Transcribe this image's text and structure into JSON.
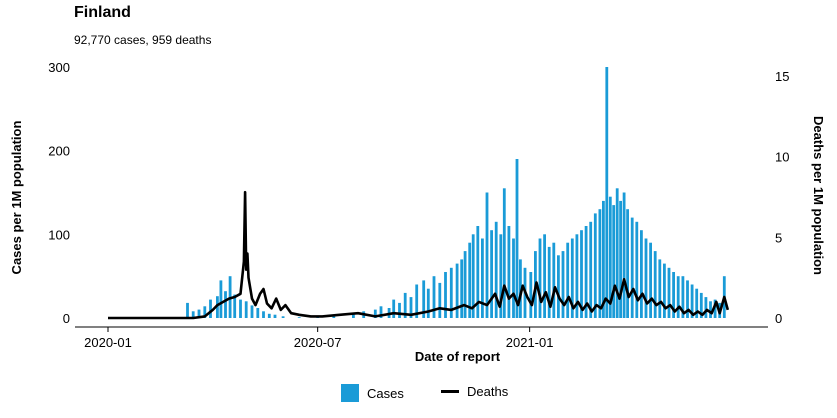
{
  "header": {
    "title": "Finland",
    "subtitle": "92,770 cases, 959 deaths"
  },
  "legend": {
    "cases_label": "Cases",
    "deaths_label": "Deaths"
  },
  "colors": {
    "cases": "#1a9bd7",
    "deaths": "#000000"
  },
  "chart_data": {
    "type": "bar",
    "combo": "bar (cases, left axis) + line (deaths, right axis)",
    "xlabel": "Date of report",
    "ylabel_left": "Cases per 1M population",
    "ylabel_right": "Deaths per 1M population",
    "x_ticks": [
      "2020-01",
      "2020-07",
      "2021-01"
    ],
    "y_left_ticks": [
      0,
      100,
      200,
      300
    ],
    "y_left_lim": [
      0,
      300
    ],
    "y_right_ticks": [
      0,
      5,
      10,
      15
    ],
    "y_right_lim": [
      0,
      15
    ],
    "x_range": [
      "2020-01-01",
      "2021-06-30"
    ],
    "grid": false,
    "legend_position": "bottom",
    "series": [
      {
        "name": "Cases",
        "axis": "left",
        "kind": "bar",
        "points": [
          [
            "2020-03-10",
            18
          ],
          [
            "2020-03-15",
            8
          ],
          [
            "2020-03-20",
            10
          ],
          [
            "2020-03-25",
            14
          ],
          [
            "2020-03-30",
            22
          ],
          [
            "2020-04-05",
            26
          ],
          [
            "2020-04-08",
            45
          ],
          [
            "2020-04-12",
            32
          ],
          [
            "2020-04-16",
            50
          ],
          [
            "2020-04-20",
            28
          ],
          [
            "2020-04-25",
            22
          ],
          [
            "2020-04-30",
            20
          ],
          [
            "2020-05-05",
            15
          ],
          [
            "2020-05-10",
            12
          ],
          [
            "2020-05-15",
            8
          ],
          [
            "2020-05-20",
            5
          ],
          [
            "2020-05-25",
            4
          ],
          [
            "2020-06-01",
            2
          ],
          [
            "2020-06-15",
            1
          ],
          [
            "2020-07-01",
            2
          ],
          [
            "2020-07-15",
            3
          ],
          [
            "2020-08-01",
            5
          ],
          [
            "2020-08-10",
            8
          ],
          [
            "2020-08-20",
            10
          ],
          [
            "2020-08-25",
            14
          ],
          [
            "2020-09-01",
            12
          ],
          [
            "2020-09-05",
            22
          ],
          [
            "2020-09-10",
            18
          ],
          [
            "2020-09-15",
            30
          ],
          [
            "2020-09-20",
            25
          ],
          [
            "2020-09-25",
            40
          ],
          [
            "2020-10-01",
            45
          ],
          [
            "2020-10-05",
            35
          ],
          [
            "2020-10-10",
            50
          ],
          [
            "2020-10-15",
            42
          ],
          [
            "2020-10-20",
            55
          ],
          [
            "2020-10-25",
            60
          ],
          [
            "2020-10-30",
            65
          ],
          [
            "2020-11-03",
            70
          ],
          [
            "2020-11-06",
            80
          ],
          [
            "2020-11-10",
            90
          ],
          [
            "2020-11-13",
            100
          ],
          [
            "2020-11-17",
            110
          ],
          [
            "2020-11-21",
            95
          ],
          [
            "2020-11-25",
            150
          ],
          [
            "2020-11-29",
            105
          ],
          [
            "2020-12-03",
            115
          ],
          [
            "2020-12-07",
            100
          ],
          [
            "2020-12-10",
            155
          ],
          [
            "2020-12-14",
            110
          ],
          [
            "2020-12-18",
            95
          ],
          [
            "2020-12-21",
            190
          ],
          [
            "2020-12-24",
            70
          ],
          [
            "2020-12-28",
            60
          ],
          [
            "2021-01-02",
            55
          ],
          [
            "2021-01-06",
            80
          ],
          [
            "2021-01-10",
            95
          ],
          [
            "2021-01-14",
            100
          ],
          [
            "2021-01-18",
            85
          ],
          [
            "2021-01-22",
            90
          ],
          [
            "2021-01-26",
            75
          ],
          [
            "2021-01-30",
            80
          ],
          [
            "2021-02-03",
            90
          ],
          [
            "2021-02-07",
            95
          ],
          [
            "2021-02-11",
            100
          ],
          [
            "2021-02-15",
            105
          ],
          [
            "2021-02-19",
            110
          ],
          [
            "2021-02-23",
            115
          ],
          [
            "2021-02-27",
            125
          ],
          [
            "2021-03-03",
            130
          ],
          [
            "2021-03-06",
            140
          ],
          [
            "2021-03-09",
            300
          ],
          [
            "2021-03-12",
            145
          ],
          [
            "2021-03-15",
            135
          ],
          [
            "2021-03-18",
            155
          ],
          [
            "2021-03-21",
            140
          ],
          [
            "2021-03-24",
            150
          ],
          [
            "2021-03-27",
            130
          ],
          [
            "2021-03-31",
            120
          ],
          [
            "2021-04-04",
            115
          ],
          [
            "2021-04-08",
            105
          ],
          [
            "2021-04-12",
            95
          ],
          [
            "2021-04-16",
            90
          ],
          [
            "2021-04-20",
            80
          ],
          [
            "2021-04-24",
            70
          ],
          [
            "2021-04-28",
            65
          ],
          [
            "2021-05-02",
            60
          ],
          [
            "2021-05-06",
            55
          ],
          [
            "2021-05-10",
            50
          ],
          [
            "2021-05-14",
            50
          ],
          [
            "2021-05-18",
            45
          ],
          [
            "2021-05-22",
            40
          ],
          [
            "2021-05-26",
            35
          ],
          [
            "2021-05-30",
            30
          ],
          [
            "2021-06-03",
            25
          ],
          [
            "2021-06-07",
            20
          ],
          [
            "2021-06-11",
            22
          ],
          [
            "2021-06-15",
            18
          ],
          [
            "2021-06-19",
            50
          ]
        ]
      },
      {
        "name": "Deaths",
        "axis": "right",
        "kind": "line",
        "points": [
          [
            "2020-01-01",
            0
          ],
          [
            "2020-03-15",
            0
          ],
          [
            "2020-03-25",
            0.1
          ],
          [
            "2020-04-01",
            0.5
          ],
          [
            "2020-04-05",
            0.8
          ],
          [
            "2020-04-10",
            1.0
          ],
          [
            "2020-04-15",
            1.2
          ],
          [
            "2020-04-20",
            1.3
          ],
          [
            "2020-04-25",
            1.5
          ],
          [
            "2020-04-28",
            3.5
          ],
          [
            "2020-04-29",
            7.8
          ],
          [
            "2020-04-30",
            3.0
          ],
          [
            "2020-05-01",
            4.0
          ],
          [
            "2020-05-02",
            2.5
          ],
          [
            "2020-05-05",
            1.2
          ],
          [
            "2020-05-08",
            0.8
          ],
          [
            "2020-05-12",
            1.5
          ],
          [
            "2020-05-15",
            1.8
          ],
          [
            "2020-05-18",
            0.9
          ],
          [
            "2020-05-22",
            0.6
          ],
          [
            "2020-05-26",
            1.2
          ],
          [
            "2020-05-30",
            0.5
          ],
          [
            "2020-06-03",
            0.8
          ],
          [
            "2020-06-08",
            0.3
          ],
          [
            "2020-06-15",
            0.2
          ],
          [
            "2020-06-25",
            0.1
          ],
          [
            "2020-07-05",
            0.1
          ],
          [
            "2020-07-20",
            0.2
          ],
          [
            "2020-08-05",
            0.3
          ],
          [
            "2020-08-20",
            0.1
          ],
          [
            "2020-09-05",
            0.3
          ],
          [
            "2020-09-20",
            0.2
          ],
          [
            "2020-10-05",
            0.4
          ],
          [
            "2020-10-15",
            0.6
          ],
          [
            "2020-10-25",
            0.5
          ],
          [
            "2020-11-05",
            0.8
          ],
          [
            "2020-11-12",
            0.6
          ],
          [
            "2020-11-18",
            1.0
          ],
          [
            "2020-11-25",
            0.8
          ],
          [
            "2020-12-02",
            1.5
          ],
          [
            "2020-12-06",
            0.7
          ],
          [
            "2020-12-10",
            2.0
          ],
          [
            "2020-12-14",
            1.2
          ],
          [
            "2020-12-18",
            1.5
          ],
          [
            "2020-12-22",
            0.8
          ],
          [
            "2020-12-26",
            2.0
          ],
          [
            "2020-12-30",
            1.3
          ],
          [
            "2021-01-03",
            0.8
          ],
          [
            "2021-01-07",
            2.2
          ],
          [
            "2021-01-11",
            1.0
          ],
          [
            "2021-01-15",
            1.6
          ],
          [
            "2021-01-19",
            0.7
          ],
          [
            "2021-01-23",
            1.9
          ],
          [
            "2021-01-27",
            1.2
          ],
          [
            "2021-01-31",
            0.8
          ],
          [
            "2021-02-04",
            1.3
          ],
          [
            "2021-02-08",
            0.6
          ],
          [
            "2021-02-12",
            1.0
          ],
          [
            "2021-02-16",
            0.5
          ],
          [
            "2021-02-20",
            0.9
          ],
          [
            "2021-02-24",
            0.4
          ],
          [
            "2021-02-28",
            0.8
          ],
          [
            "2021-03-04",
            0.6
          ],
          [
            "2021-03-08",
            1.2
          ],
          [
            "2021-03-12",
            0.9
          ],
          [
            "2021-03-16",
            2.0
          ],
          [
            "2021-03-20",
            1.2
          ],
          [
            "2021-03-24",
            2.4
          ],
          [
            "2021-03-28",
            1.3
          ],
          [
            "2021-04-01",
            1.8
          ],
          [
            "2021-04-05",
            1.1
          ],
          [
            "2021-04-09",
            1.5
          ],
          [
            "2021-04-13",
            0.9
          ],
          [
            "2021-04-17",
            1.2
          ],
          [
            "2021-04-21",
            0.8
          ],
          [
            "2021-04-25",
            1.0
          ],
          [
            "2021-04-29",
            0.6
          ],
          [
            "2021-05-03",
            0.8
          ],
          [
            "2021-05-07",
            0.4
          ],
          [
            "2021-05-11",
            0.7
          ],
          [
            "2021-05-15",
            0.3
          ],
          [
            "2021-05-19",
            0.5
          ],
          [
            "2021-05-23",
            0.2
          ],
          [
            "2021-05-27",
            0.4
          ],
          [
            "2021-05-31",
            0.2
          ],
          [
            "2021-06-04",
            0.5
          ],
          [
            "2021-06-08",
            0.3
          ],
          [
            "2021-06-12",
            1.0
          ],
          [
            "2021-06-15",
            0.3
          ],
          [
            "2021-06-19",
            1.3
          ],
          [
            "2021-06-22",
            0.5
          ]
        ]
      }
    ]
  }
}
